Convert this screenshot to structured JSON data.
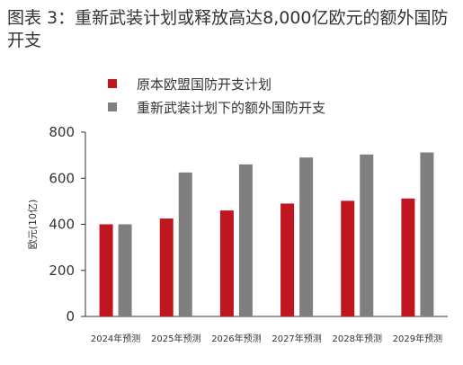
{
  "title": "图表 3：重新武装计划或释放高达8,000亿欧元的额外国防开支",
  "chart_data": {
    "type": "bar",
    "categories": [
      "2024年预测",
      "2025年预测",
      "2026年预测",
      "2027年预测",
      "2028年预测",
      "2029年预测"
    ],
    "series": [
      {
        "name": "原本欧盟国防开支计划",
        "color": "#c0161f",
        "values": [
          400,
          425,
          460,
          490,
          502,
          512
        ]
      },
      {
        "name": "重新武装计划下的额外国防开支",
        "color": "#7f7f7f",
        "values": [
          400,
          625,
          660,
          690,
          703,
          712
        ]
      }
    ],
    "ylabel": "欧元(10亿)",
    "ylim": [
      0,
      800
    ],
    "yticks": [
      0,
      200,
      400,
      600,
      800
    ],
    "legend_position": "top-left"
  }
}
